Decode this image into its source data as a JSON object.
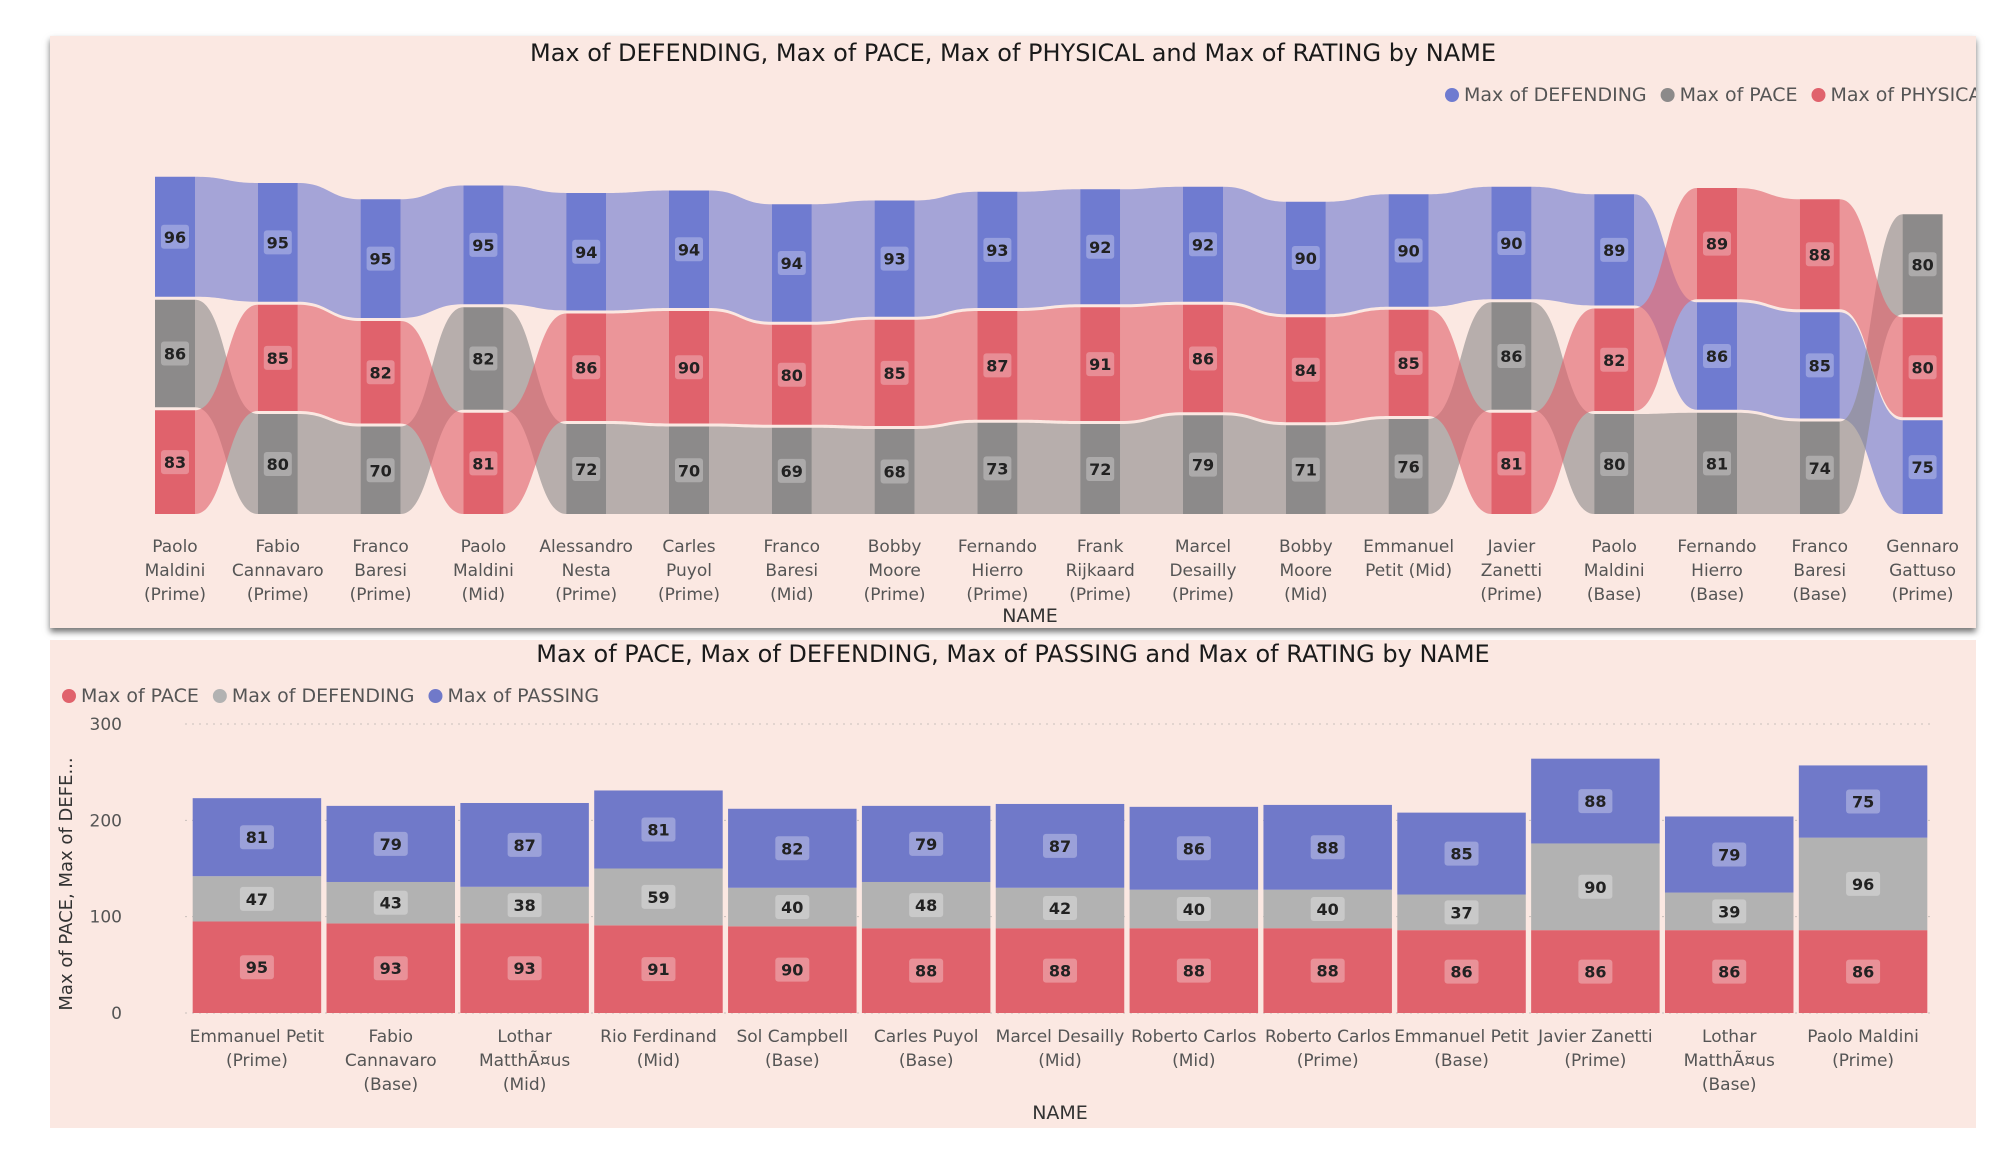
{
  "top": {
    "title": "Max of DEFENDING, Max of PACE, Max of PHYSICAL and Max of RATING by NAME",
    "xlabel": "NAME",
    "legend": [
      "Max of DEFENDING",
      "Max of PACE",
      "Max of PHYSICAL"
    ]
  },
  "bottom": {
    "title": "Max of PACE, Max of DEFENDING, Max of PASSING and Max of RATING by NAME",
    "xlabel": "NAME",
    "ylabel": "Max of PACE, Max of DEFE...",
    "legend": [
      "Max of PACE",
      "Max of DEFENDING",
      "Max of PASSING"
    ]
  },
  "colors": {
    "defending_top": "#6f7bd0",
    "pace_top": "#8c8a8a",
    "physical_top": "#e0626c",
    "pace_bottom": "#e0626c",
    "defending_bottom": "#b2b2b2",
    "passing_bottom": "#7079c9",
    "panel_bg": "#fbe8e2"
  },
  "chart_data": [
    {
      "type": "ribbon",
      "title": "Max of DEFENDING, Max of PACE, Max of PHYSICAL and Max of RATING by NAME",
      "xlabel": "NAME",
      "legend_position": "top-right",
      "categories": [
        [
          "Paolo",
          "Maldini",
          "(Prime)"
        ],
        [
          "Fabio",
          "Cannavaro",
          "(Prime)"
        ],
        [
          "Franco",
          "Baresi",
          "(Prime)"
        ],
        [
          "Paolo",
          "Maldini",
          "(Mid)"
        ],
        [
          "Alessandro",
          "Nesta",
          "(Prime)"
        ],
        [
          "Carles",
          "Puyol",
          "(Prime)"
        ],
        [
          "Franco",
          "Baresi",
          "(Mid)"
        ],
        [
          "Bobby",
          "Moore",
          "(Prime)"
        ],
        [
          "Fernando",
          "Hierro",
          "(Prime)"
        ],
        [
          "Frank",
          "Rijkaard",
          "(Prime)"
        ],
        [
          "Marcel",
          "Desailly",
          "(Prime)"
        ],
        [
          "Bobby",
          "Moore",
          "(Mid)"
        ],
        [
          "Emmanuel",
          "Petit (Mid)"
        ],
        [
          "Javier",
          "Zanetti",
          "(Prime)"
        ],
        [
          "Paolo",
          "Maldini",
          "(Base)"
        ],
        [
          "Fernando",
          "Hierro",
          "(Base)"
        ],
        [
          "Franco",
          "Baresi",
          "(Base)"
        ],
        [
          "Gennaro",
          "Gattuso",
          "(Prime)"
        ]
      ],
      "series": [
        {
          "name": "Max of DEFENDING",
          "values": [
            96,
            95,
            95,
            95,
            94,
            94,
            94,
            93,
            93,
            92,
            92,
            90,
            90,
            90,
            89,
            86,
            85,
            75
          ]
        },
        {
          "name": "Max of PACE",
          "values": [
            86,
            80,
            70,
            82,
            72,
            70,
            69,
            68,
            73,
            72,
            79,
            71,
            76,
            86,
            80,
            81,
            74,
            80
          ]
        },
        {
          "name": "Max of PHYSICAL",
          "values": [
            83,
            85,
            82,
            81,
            86,
            90,
            80,
            85,
            87,
            91,
            86,
            84,
            85,
            81,
            82,
            89,
            88,
            80
          ]
        }
      ]
    },
    {
      "type": "bar",
      "stacked": true,
      "title": "Max of PACE, Max of DEFENDING, Max of PASSING and Max of RATING by NAME",
      "xlabel": "NAME",
      "ylabel": "Max of PACE, Max of DEFE...",
      "ylim": [
        0,
        300
      ],
      "yticks": [
        0,
        100,
        200,
        300
      ],
      "grid": true,
      "legend_position": "top-left",
      "categories": [
        [
          "Emmanuel Petit",
          "(Prime)"
        ],
        [
          "Fabio",
          "Cannavaro",
          "(Base)"
        ],
        [
          "Lothar",
          "MatthÃ¤us",
          "(Mid)"
        ],
        [
          "Rio Ferdinand",
          "(Mid)"
        ],
        [
          "Sol Campbell",
          "(Base)"
        ],
        [
          "Carles Puyol",
          "(Base)"
        ],
        [
          "Marcel Desailly",
          "(Mid)"
        ],
        [
          "Roberto Carlos",
          "(Mid)"
        ],
        [
          "Roberto Carlos",
          "(Prime)"
        ],
        [
          "Emmanuel Petit",
          "(Base)"
        ],
        [
          "Javier Zanetti",
          "(Prime)"
        ],
        [
          "Lothar",
          "MatthÃ¤us",
          "(Base)"
        ],
        [
          "Paolo Maldini",
          "(Prime)"
        ]
      ],
      "series": [
        {
          "name": "Max of PACE",
          "values": [
            95,
            93,
            93,
            91,
            90,
            88,
            88,
            88,
            88,
            86,
            86,
            86,
            86
          ]
        },
        {
          "name": "Max of DEFENDING",
          "values": [
            47,
            43,
            38,
            59,
            40,
            48,
            42,
            40,
            40,
            37,
            90,
            39,
            96
          ]
        },
        {
          "name": "Max of PASSING",
          "values": [
            81,
            79,
            87,
            81,
            82,
            79,
            87,
            86,
            88,
            85,
            88,
            79,
            75
          ]
        }
      ]
    }
  ]
}
